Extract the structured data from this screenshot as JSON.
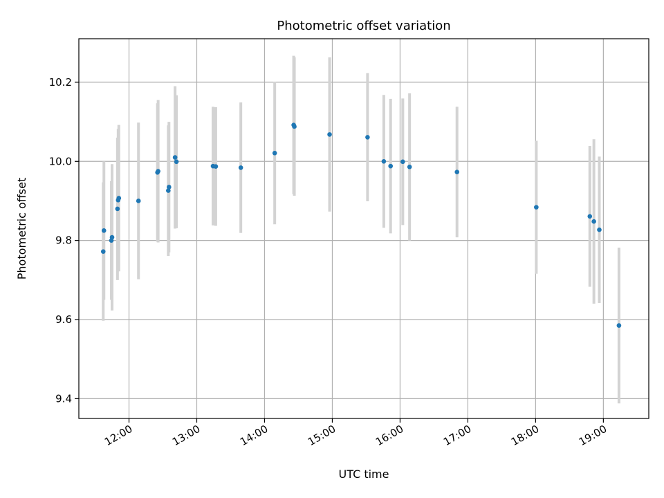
{
  "chart_data": {
    "type": "scatter",
    "title": "Photometric offset variation",
    "xlabel": "UTC time",
    "ylabel": "Photometric offset",
    "x_unit": "hours",
    "xlim": [
      11.26,
      19.67
    ],
    "ylim": [
      9.35,
      10.31
    ],
    "grid": true,
    "legend": "none",
    "xticks": [
      {
        "value": 12,
        "label": "12:00"
      },
      {
        "value": 13,
        "label": "13:00"
      },
      {
        "value": 14,
        "label": "14:00"
      },
      {
        "value": 15,
        "label": "15:00"
      },
      {
        "value": 16,
        "label": "16:00"
      },
      {
        "value": 17,
        "label": "17:00"
      },
      {
        "value": 18,
        "label": "18:00"
      },
      {
        "value": 19,
        "label": "19:00"
      }
    ],
    "yticks": [
      {
        "value": 9.4,
        "label": "9.4"
      },
      {
        "value": 9.6,
        "label": "9.6"
      },
      {
        "value": 9.8,
        "label": "9.8"
      },
      {
        "value": 10.0,
        "label": "10.0"
      },
      {
        "value": 10.2,
        "label": "10.2"
      }
    ],
    "colors": {
      "point": "#1f77b4",
      "errorbar": "#d3d3d3",
      "grid": "#b0b0b0"
    },
    "points": [
      {
        "x": 11.62,
        "y": 9.772,
        "err": 0.175
      },
      {
        "x": 11.63,
        "y": 9.825,
        "err": 0.175
      },
      {
        "x": 11.74,
        "y": 9.8,
        "err": 0.15
      },
      {
        "x": 11.75,
        "y": 9.808,
        "err": 0.185
      },
      {
        "x": 11.83,
        "y": 9.88,
        "err": 0.18
      },
      {
        "x": 11.84,
        "y": 9.902,
        "err": 0.18
      },
      {
        "x": 11.85,
        "y": 9.907,
        "err": 0.185
      },
      {
        "x": 12.14,
        "y": 9.9,
        "err": 0.198
      },
      {
        "x": 12.42,
        "y": 9.972,
        "err": 0.175
      },
      {
        "x": 12.43,
        "y": 9.975,
        "err": 0.18
      },
      {
        "x": 12.58,
        "y": 9.926,
        "err": 0.165
      },
      {
        "x": 12.59,
        "y": 9.935,
        "err": 0.165
      },
      {
        "x": 12.68,
        "y": 10.01,
        "err": 0.18
      },
      {
        "x": 12.7,
        "y": 9.999,
        "err": 0.168
      },
      {
        "x": 13.24,
        "y": 9.988,
        "err": 0.15
      },
      {
        "x": 13.28,
        "y": 9.987,
        "err": 0.15
      },
      {
        "x": 13.65,
        "y": 9.984,
        "err": 0.165
      },
      {
        "x": 14.15,
        "y": 10.021,
        "err": 0.18
      },
      {
        "x": 14.43,
        "y": 10.092,
        "err": 0.175
      },
      {
        "x": 14.44,
        "y": 10.088,
        "err": 0.175
      },
      {
        "x": 14.96,
        "y": 10.068,
        "err": 0.195
      },
      {
        "x": 15.52,
        "y": 10.061,
        "err": 0.162
      },
      {
        "x": 15.76,
        "y": 10.0,
        "err": 0.168
      },
      {
        "x": 15.86,
        "y": 9.988,
        "err": 0.17
      },
      {
        "x": 16.04,
        "y": 9.999,
        "err": 0.16
      },
      {
        "x": 16.14,
        "y": 9.986,
        "err": 0.186
      },
      {
        "x": 16.84,
        "y": 9.973,
        "err": 0.165
      },
      {
        "x": 18.01,
        "y": 9.884,
        "err": 0.168
      },
      {
        "x": 18.8,
        "y": 9.861,
        "err": 0.178
      },
      {
        "x": 18.86,
        "y": 9.848,
        "err": 0.208
      },
      {
        "x": 18.94,
        "y": 9.827,
        "err": 0.185
      },
      {
        "x": 19.23,
        "y": 9.585,
        "err": 0.197
      }
    ]
  }
}
